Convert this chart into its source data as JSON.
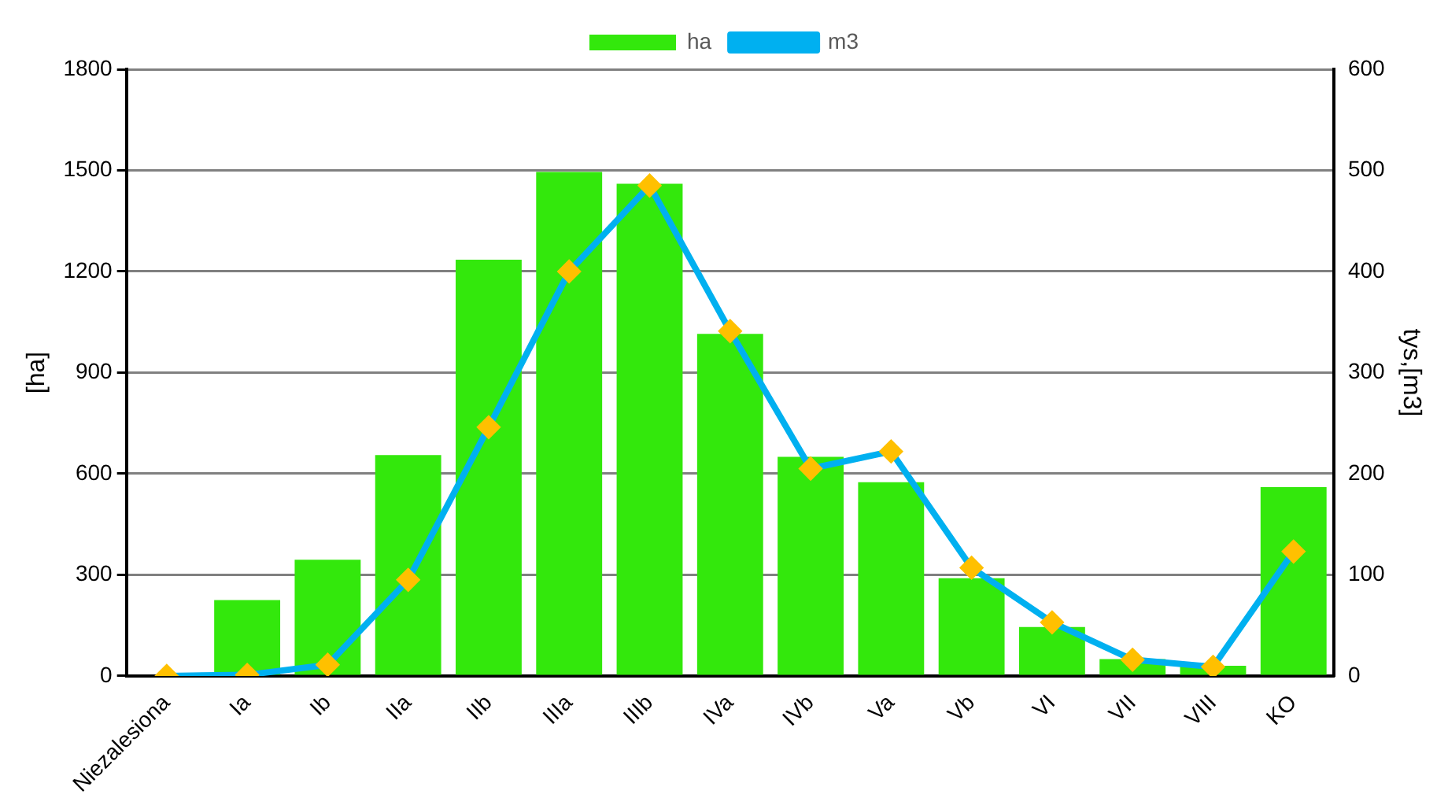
{
  "chart_data": {
    "type": "bar",
    "ylabel": "[ha]",
    "y2label": "tys,[m3]",
    "categories": [
      "Niezalesiona",
      "Ia",
      "Ib",
      "IIa",
      "IIb",
      "IIIa",
      "IIIb",
      "IVa",
      "IVb",
      "Va",
      "Vb",
      "VI",
      "VII",
      "VIII",
      "KO"
    ],
    "series": [
      {
        "name": "ha",
        "color": "#33e80c",
        "values": [
          0,
          225,
          345,
          655,
          1235,
          1495,
          1460,
          1015,
          650,
          575,
          290,
          145,
          50,
          30,
          560
        ]
      },
      {
        "name": "m3",
        "type": "line",
        "axis": "y2",
        "color": "#00b0f0",
        "values": [
          0,
          1,
          11,
          95,
          246,
          400,
          485,
          341,
          205,
          222,
          107,
          53,
          16,
          9,
          123
        ]
      }
    ],
    "ylim": [
      0,
      1800
    ],
    "yticks": [
      0,
      300,
      600,
      900,
      1200,
      1500,
      1800
    ],
    "y2lim": [
      0,
      600
    ],
    "y2ticks": [
      0,
      100,
      200,
      300,
      400,
      500,
      600
    ],
    "grid": "y",
    "legend": "top",
    "marker": "diamond",
    "line_style": "solid"
  }
}
